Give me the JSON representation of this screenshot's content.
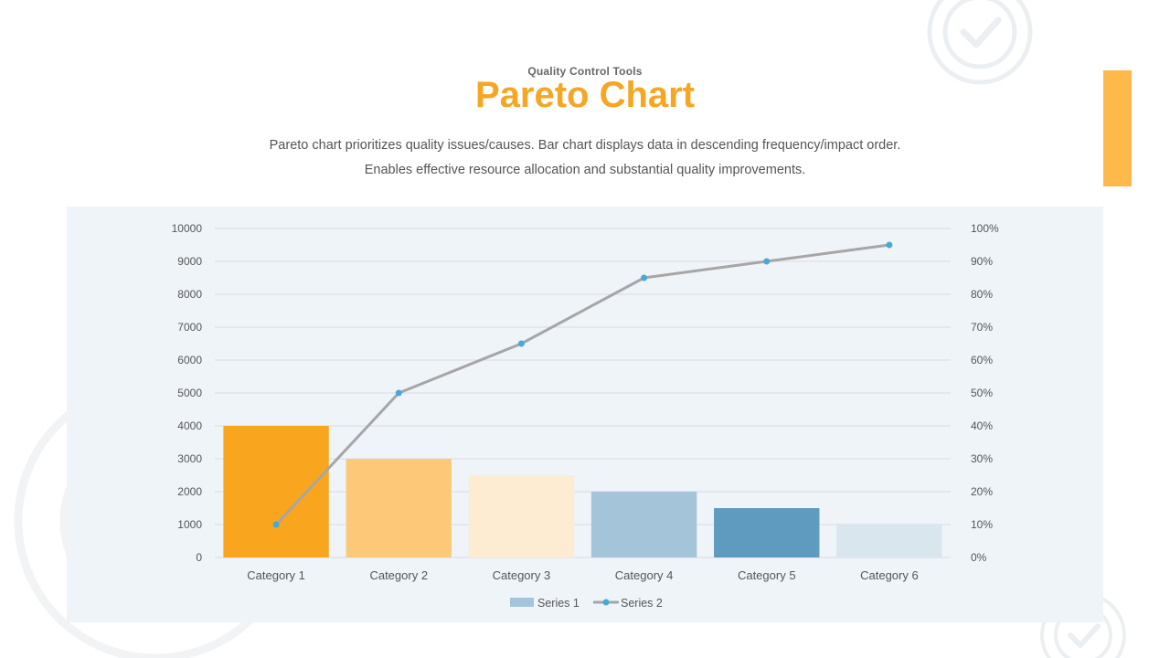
{
  "header": {
    "subtitle": "Quality Control Tools",
    "title": "Pareto Chart",
    "description_line1": "Pareto chart prioritizes quality issues/causes. Bar chart displays data in descending frequency/impact order.",
    "description_line2": "Enables effective resource allocation and substantial quality improvements."
  },
  "colors": {
    "title": "#f5a623",
    "accent_bar": "#fdb94a",
    "line": "#a6a6a6",
    "marker": "#4aa8d8",
    "grid": "#d9dde2",
    "decoration": "#e9ecef"
  },
  "chart_data": {
    "type": "bar",
    "categories": [
      "Category 1",
      "Category 2",
      "Category 3",
      "Category 4",
      "Category 5",
      "Category 6"
    ],
    "series": [
      {
        "name": "Series 1",
        "type": "bar",
        "axis": "left",
        "values": [
          4000,
          3000,
          2500,
          2000,
          1500,
          1000
        ],
        "colors": [
          "#f9a61e",
          "#fdc878",
          "#fdecd1",
          "#a3c4d9",
          "#5e9bbf",
          "#d9e6ee"
        ]
      },
      {
        "name": "Series 2",
        "type": "line",
        "axis": "right",
        "values": [
          10,
          50,
          65,
          85,
          90,
          95
        ]
      }
    ],
    "y_left": {
      "min": 0,
      "max": 10000,
      "step": 1000
    },
    "y_right": {
      "min": 0,
      "max": 100,
      "step": 10,
      "suffix": "%"
    },
    "legend": "bottom",
    "grid": true
  }
}
